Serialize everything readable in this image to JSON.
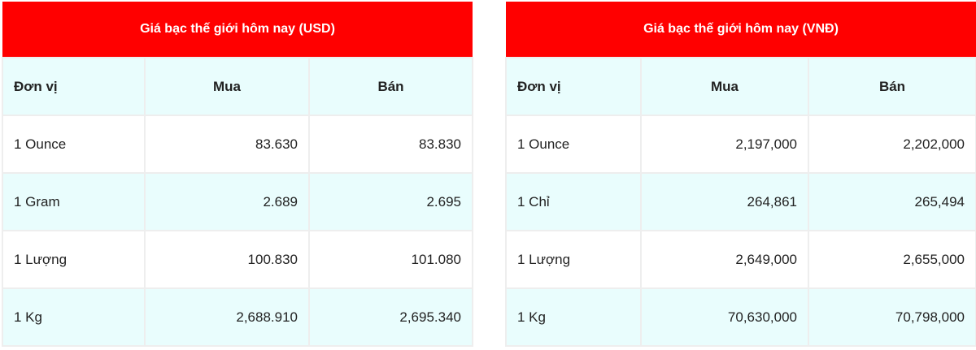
{
  "tables": [
    {
      "id": "usd",
      "title": "Giá bạc thế giới hôm nay (USD)",
      "headers": [
        "Đơn vị",
        "Mua",
        "Bán"
      ],
      "rows": [
        [
          "1 Ounce",
          "83.630",
          "83.830"
        ],
        [
          "1 Gram",
          "2.689",
          "2.695"
        ],
        [
          "1 Lượng",
          "100.830",
          "101.080"
        ],
        [
          "1 Kg",
          "2,688.910",
          "2,695.340"
        ]
      ]
    },
    {
      "id": "vnd",
      "title": "Giá bạc thế giới hôm nay (VNĐ)",
      "headers": [
        "Đơn vị",
        "Mua",
        "Bán"
      ],
      "rows": [
        [
          "1 Ounce",
          "2,197,000",
          "2,202,000"
        ],
        [
          "1 Chỉ",
          "264,861",
          "265,494"
        ],
        [
          "1 Lượng",
          "2,649,000",
          "2,655,000"
        ],
        [
          "1 Kg",
          "70,630,000",
          "70,798,000"
        ]
      ]
    }
  ],
  "colors": {
    "header_bg": "#ff0000",
    "alt_row_bg": "#e9fdfd",
    "border": "#eeeeee"
  }
}
